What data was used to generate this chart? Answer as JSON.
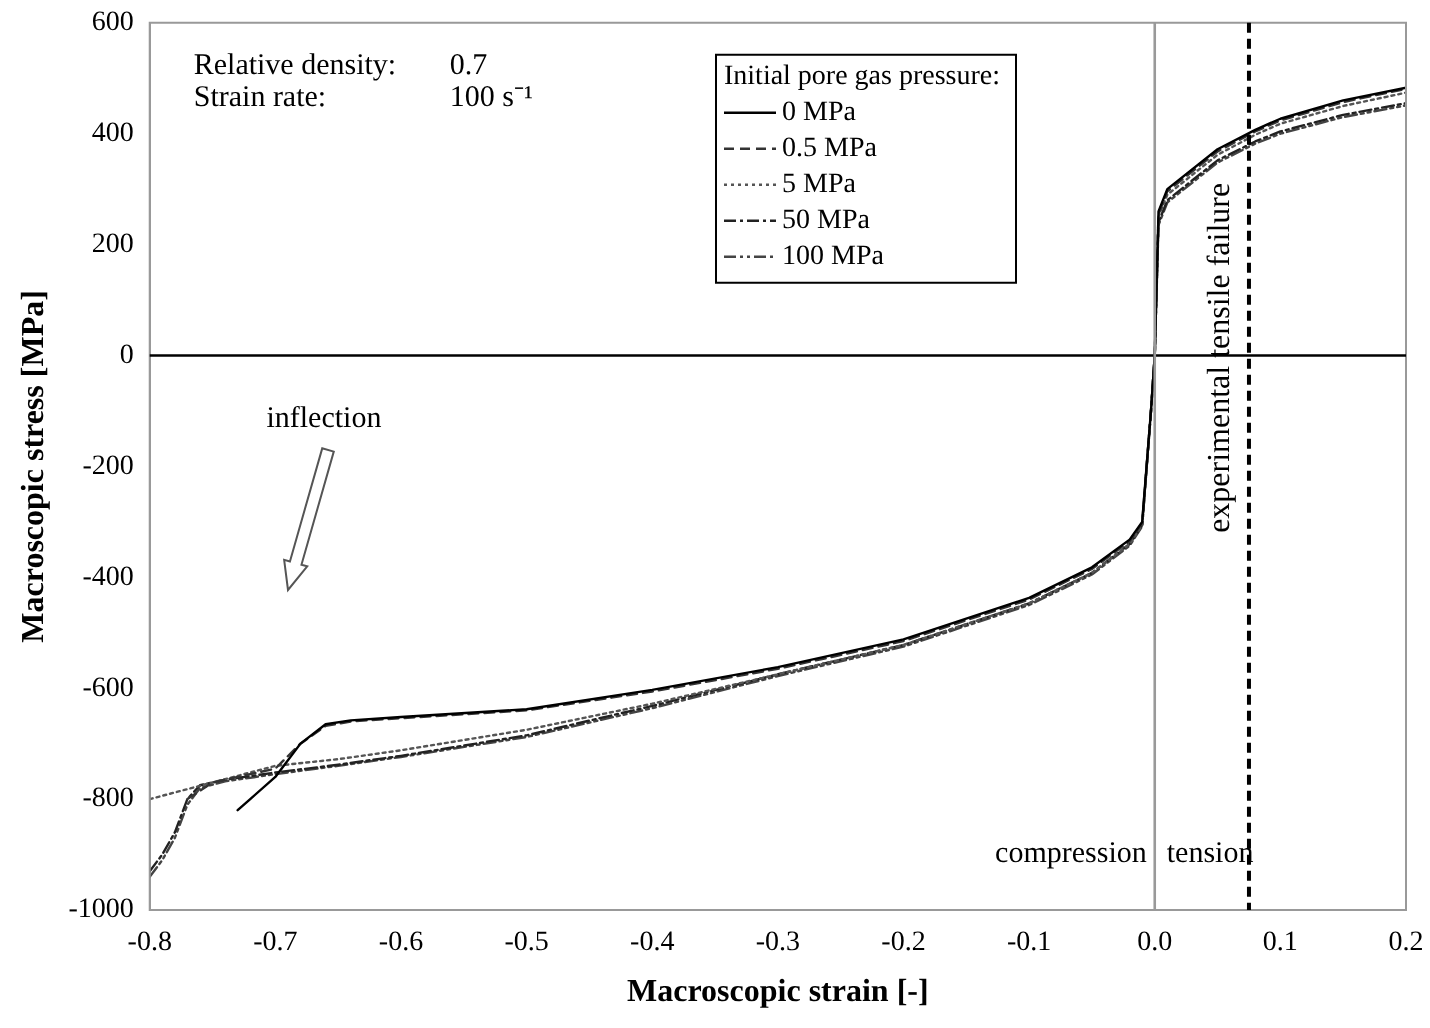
{
  "chart_data": {
    "type": "line",
    "xlabel": "Macroscopic strain [-]",
    "ylabel": "Macroscopic stress [MPa]",
    "legend_title": "Initial pore gas pressure:",
    "xlim": [
      -0.8,
      0.2
    ],
    "xticks": [
      -0.8,
      -0.7,
      -0.6,
      -0.5,
      -0.4,
      -0.3,
      -0.2,
      -0.1,
      {
        "value": 0,
        "label": "0.0"
      },
      0.1,
      0.2
    ],
    "ylim": [
      -1000,
      600
    ],
    "yticks": [
      -1000,
      -800,
      -600,
      -400,
      -200,
      0,
      200,
      400,
      600
    ],
    "grid": false,
    "legend": "top right",
    "marker": "none",
    "series": [
      {
        "name": "0 MPa",
        "color": "#000000",
        "line_style": "solid",
        "x": [
          -0.73,
          -0.72,
          -0.7,
          -0.68,
          -0.66,
          -0.64,
          -0.6,
          -0.5,
          -0.4,
          -0.3,
          -0.2,
          -0.1,
          -0.05,
          -0.02,
          -0.01,
          -0.003,
          0,
          0.003,
          0.01,
          0.05,
          0.08,
          0.1,
          0.15,
          0.2
        ],
        "values": [
          -820,
          -800,
          -760,
          -700,
          -665,
          -658,
          -652,
          -638,
          -603,
          -562,
          -512,
          -437,
          -382,
          -332,
          -300,
          -100,
          0,
          260,
          300,
          372,
          407,
          427,
          460,
          483
        ]
      },
      {
        "name": "0.5 MPa",
        "color": "#333333",
        "line_style": "dashed",
        "x": [
          -0.77,
          -0.75,
          -0.72,
          -0.7,
          -0.68,
          -0.66,
          -0.64,
          -0.6,
          -0.5,
          -0.4,
          -0.3,
          -0.2,
          -0.1,
          -0.05,
          -0.02,
          -0.01,
          -0.003,
          0,
          0.003,
          0.01,
          0.05,
          0.08,
          0.1,
          0.15,
          0.2
        ],
        "values": [
          -800,
          -770,
          -755,
          -745,
          -700,
          -668,
          -660,
          -654,
          -640,
          -606,
          -565,
          -515,
          -440,
          -385,
          -335,
          -302,
          -100,
          0,
          255,
          296,
          368,
          404,
          424,
          457,
          481
        ]
      },
      {
        "name": "5 MPa",
        "color": "#555555",
        "line_style": "dotted",
        "x": [
          -0.8,
          -0.75,
          -0.7,
          -0.65,
          -0.6,
          -0.5,
          -0.4,
          -0.3,
          -0.2,
          -0.1,
          -0.05,
          -0.02,
          -0.01,
          -0.003,
          0,
          0.003,
          0.01,
          0.05,
          0.08,
          0.1,
          0.15,
          0.2
        ],
        "values": [
          -800,
          -770,
          -740,
          -728,
          -712,
          -675,
          -628,
          -575,
          -522,
          -447,
          -392,
          -340,
          -306,
          -100,
          0,
          250,
          290,
          362,
          398,
          418,
          450,
          474
        ]
      },
      {
        "name": "50 MPa",
        "color": "#222222",
        "line_style": "dashdot",
        "x": [
          -0.8,
          -0.79,
          -0.78,
          -0.77,
          -0.76,
          -0.74,
          -0.7,
          -0.65,
          -0.6,
          -0.5,
          -0.4,
          -0.3,
          -0.2,
          -0.1,
          -0.05,
          -0.02,
          -0.01,
          -0.003,
          0,
          0.003,
          0.01,
          0.05,
          0.08,
          0.1,
          0.15,
          0.2
        ],
        "values": [
          -930,
          -900,
          -860,
          -800,
          -775,
          -765,
          -752,
          -738,
          -722,
          -685,
          -632,
          -575,
          -522,
          -447,
          -392,
          -340,
          -306,
          -100,
          0,
          240,
          280,
          352,
          386,
          404,
          434,
          455
        ]
      },
      {
        "name": "100 MPa",
        "color": "#444444",
        "line_style": "dashdotdot",
        "x": [
          -0.8,
          -0.79,
          -0.78,
          -0.77,
          -0.76,
          -0.74,
          -0.7,
          -0.65,
          -0.6,
          -0.5,
          -0.4,
          -0.3,
          -0.2,
          -0.1,
          -0.05,
          -0.02,
          -0.01,
          -0.003,
          0,
          0.003,
          0.01,
          0.05,
          0.08,
          0.1,
          0.15,
          0.2
        ],
        "values": [
          -940,
          -910,
          -870,
          -810,
          -780,
          -768,
          -755,
          -740,
          -724,
          -688,
          -636,
          -578,
          -525,
          -450,
          -395,
          -343,
          -308,
          -100,
          0,
          235,
          276,
          348,
          382,
          400,
          430,
          451
        ]
      }
    ],
    "ref_lines": [
      {
        "axis": "y",
        "value": 0,
        "color": "#000000",
        "line_style": "solid"
      },
      {
        "axis": "x",
        "value": 0,
        "color": "#999999",
        "line_style": "solid"
      },
      {
        "axis": "x",
        "value": 0.075,
        "label": "experimental tensile failure",
        "color": "#000000",
        "line_style": "dashed"
      }
    ],
    "annotations": [
      "Relative density:\t0.7",
      "Strain rate:\t100 s⁻¹",
      "inflection",
      {
        "text": "compression",
        "x": 0,
        "y": -900
      },
      {
        "text": "tension",
        "x": 0,
        "y": -900
      }
    ]
  }
}
